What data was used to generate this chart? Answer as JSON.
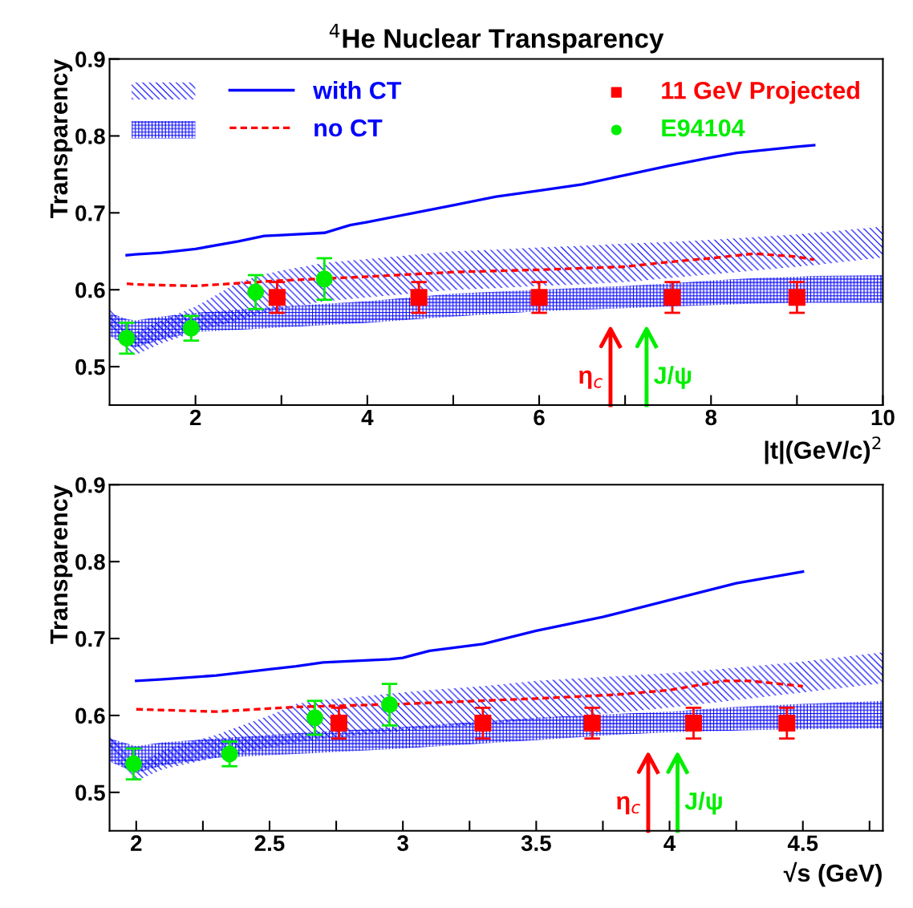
{
  "chart_data": [
    {
      "type": "line",
      "title": "$^{4}$He Nuclear Transparency",
      "xlabel": "|t|(GeV/c)$^{2}$",
      "ylabel": "Transparency",
      "xlim": [
        1,
        10
      ],
      "ylim": [
        0.45,
        0.9
      ],
      "xticks": [
        2,
        {
          "value": 3,
          "label": null
        },
        4,
        {
          "value": 5,
          "label": null
        },
        6,
        {
          "value": 7,
          "label": null
        },
        8,
        {
          "value": 9,
          "label": null
        },
        10
      ],
      "yticks": [
        0.5,
        0.6,
        0.7,
        0.8,
        0.9
      ],
      "legend": "top",
      "grid": false,
      "ref_lines": [
        {
          "axis": "x",
          "value": 6.83,
          "label": "η$_{c}$",
          "color": "#ff0000"
        },
        {
          "axis": "x",
          "value": 7.25,
          "label": "J/ψ",
          "color": "#00ee00"
        }
      ],
      "series": [
        {
          "name": "with CT",
          "color": "#0000ff",
          "line_style": "solid",
          "x": [
            1.0,
            1.2,
            1.3,
            1.6,
            2.0,
            2.5,
            2.8,
            3.0,
            3.5,
            3.8,
            4.0,
            4.5,
            5.0,
            5.5,
            6.0,
            6.5,
            7.0,
            7.5,
            8.0,
            8.3,
            9.0,
            9.2,
            10.0
          ],
          "values": [
            null,
            0.645,
            0.646,
            0.648,
            0.653,
            0.663,
            0.67,
            0.671,
            0.674,
            0.684,
            0.688,
            0.699,
            0.71,
            0.721,
            0.729,
            0.737,
            0.749,
            0.761,
            0.772,
            0.778,
            0.786,
            0.788,
            null
          ],
          "lower": [
            0.555,
            0.52,
            0.515,
            0.53,
            0.545,
            0.56,
            0.57,
            0.575,
            0.585,
            0.588,
            0.59,
            0.595,
            0.6,
            0.602,
            0.605,
            0.607,
            0.61,
            0.615,
            0.62,
            0.623,
            0.63,
            0.632,
            0.642
          ],
          "upper": [
            0.575,
            0.55,
            0.545,
            0.56,
            0.578,
            0.61,
            0.62,
            0.625,
            0.635,
            0.638,
            0.64,
            0.645,
            0.65,
            0.652,
            0.655,
            0.657,
            0.66,
            0.662,
            0.665,
            0.667,
            0.672,
            0.674,
            0.682
          ]
        },
        {
          "name": "no CT",
          "color": "#ff0000",
          "line_style": "dashed",
          "x": [
            1.0,
            1.2,
            1.3,
            1.6,
            2.0,
            3.0,
            4.0,
            5.0,
            6.0,
            7.0,
            7.5,
            8.0,
            8.5,
            9.0,
            9.2,
            10.0
          ],
          "values": [
            null,
            0.608,
            0.607,
            0.606,
            0.605,
            0.612,
            0.617,
            0.623,
            0.626,
            0.63,
            0.636,
            0.641,
            0.647,
            0.643,
            0.639,
            null
          ],
          "lower": [
            0.54,
            0.528,
            0.525,
            0.535,
            0.545,
            0.551,
            0.557,
            0.565,
            0.572,
            0.576,
            0.578,
            0.58,
            0.582,
            0.583,
            0.583,
            0.583
          ],
          "upper": [
            0.57,
            0.562,
            0.56,
            0.565,
            0.57,
            0.578,
            0.585,
            0.595,
            0.6,
            0.605,
            0.608,
            0.612,
            0.615,
            0.617,
            0.618,
            0.619
          ]
        },
        {
          "type": "scatter",
          "name": "11 GeV Projected",
          "color": "#ff0000",
          "marker": "square",
          "x": [
            2.95,
            4.6,
            6.0,
            7.55,
            9.0
          ],
          "values": [
            0.59,
            0.59,
            0.59,
            0.59,
            0.59
          ],
          "errors": [
            0.02,
            0.02,
            0.02,
            0.02,
            0.02
          ]
        },
        {
          "type": "scatter",
          "name": "E94104",
          "color": "#00ee00",
          "marker": "circle",
          "x": [
            1.2,
            1.95,
            2.7,
            3.5
          ],
          "values": [
            0.537,
            0.55,
            0.597,
            0.614
          ],
          "errors": [
            0.02,
            0.016,
            0.022,
            0.027
          ]
        }
      ]
    },
    {
      "type": "line",
      "xlabel": "√s (GeV)",
      "ylabel": "Transparency",
      "xlim": [
        1.9,
        4.8
      ],
      "ylim": [
        0.45,
        0.9
      ],
      "xticks": [
        2,
        {
          "value": 2.25,
          "label": null
        },
        2.5,
        {
          "value": 2.75,
          "label": null
        },
        3,
        {
          "value": 3.25,
          "label": null
        },
        3.5,
        {
          "value": 3.75,
          "label": null
        },
        4,
        {
          "value": 4.25,
          "label": null
        },
        4.5,
        {
          "value": 4.75,
          "label": null
        }
      ],
      "yticks": [
        0.5,
        0.6,
        0.7,
        0.8,
        0.9
      ],
      "grid": false,
      "ref_lines": [
        {
          "axis": "x",
          "value": 3.92,
          "label": "η$_{c}$",
          "color": "#ff0000"
        },
        {
          "axis": "x",
          "value": 4.03,
          "label": "J/ψ",
          "color": "#00ee00"
        }
      ],
      "series": [
        {
          "color": "#0000ff",
          "line_style": "solid",
          "x": [
            1.9,
            2.0,
            2.1,
            2.3,
            2.5,
            2.6,
            2.7,
            2.95,
            3.0,
            3.1,
            3.3,
            3.5,
            3.75,
            4.0,
            4.25,
            4.5,
            4.8
          ],
          "values": [
            null,
            0.645,
            0.647,
            0.652,
            0.66,
            0.664,
            0.669,
            0.673,
            0.675,
            0.684,
            0.693,
            0.71,
            0.728,
            0.75,
            0.772,
            0.787,
            null
          ],
          "lower": [
            0.555,
            0.515,
            0.53,
            0.545,
            0.558,
            0.565,
            0.57,
            0.578,
            0.58,
            0.583,
            0.588,
            0.595,
            0.602,
            0.61,
            0.62,
            0.63,
            0.642
          ],
          "upper": [
            0.575,
            0.535,
            0.555,
            0.575,
            0.6,
            0.615,
            0.62,
            0.628,
            0.63,
            0.633,
            0.638,
            0.645,
            0.65,
            0.655,
            0.662,
            0.67,
            0.682
          ]
        },
        {
          "color": "#ff0000",
          "line_style": "dashed",
          "x": [
            1.9,
            2.0,
            2.1,
            2.3,
            2.6,
            3.0,
            3.5,
            3.8,
            4.0,
            4.2,
            4.3,
            4.5,
            4.8
          ],
          "values": [
            null,
            0.608,
            0.607,
            0.605,
            0.611,
            0.615,
            0.622,
            0.627,
            0.633,
            0.645,
            0.645,
            0.638,
            null
          ],
          "lower": [
            0.54,
            0.525,
            0.535,
            0.545,
            0.55,
            0.557,
            0.568,
            0.575,
            0.578,
            0.58,
            0.581,
            0.582,
            0.583
          ],
          "upper": [
            0.57,
            0.56,
            0.565,
            0.57,
            0.577,
            0.585,
            0.597,
            0.602,
            0.605,
            0.61,
            0.612,
            0.615,
            0.619
          ]
        },
        {
          "type": "scatter",
          "color": "#ff0000",
          "marker": "square",
          "x": [
            2.76,
            3.3,
            3.71,
            4.09,
            4.44
          ],
          "values": [
            0.59,
            0.59,
            0.59,
            0.59,
            0.59
          ],
          "errors": [
            0.02,
            0.02,
            0.02,
            0.02,
            0.02
          ]
        },
        {
          "type": "scatter",
          "color": "#00ee00",
          "marker": "circle",
          "x": [
            1.99,
            2.35,
            2.67,
            2.95
          ],
          "values": [
            0.537,
            0.55,
            0.597,
            0.614
          ],
          "errors": [
            0.02,
            0.016,
            0.022,
            0.027
          ]
        }
      ]
    }
  ]
}
